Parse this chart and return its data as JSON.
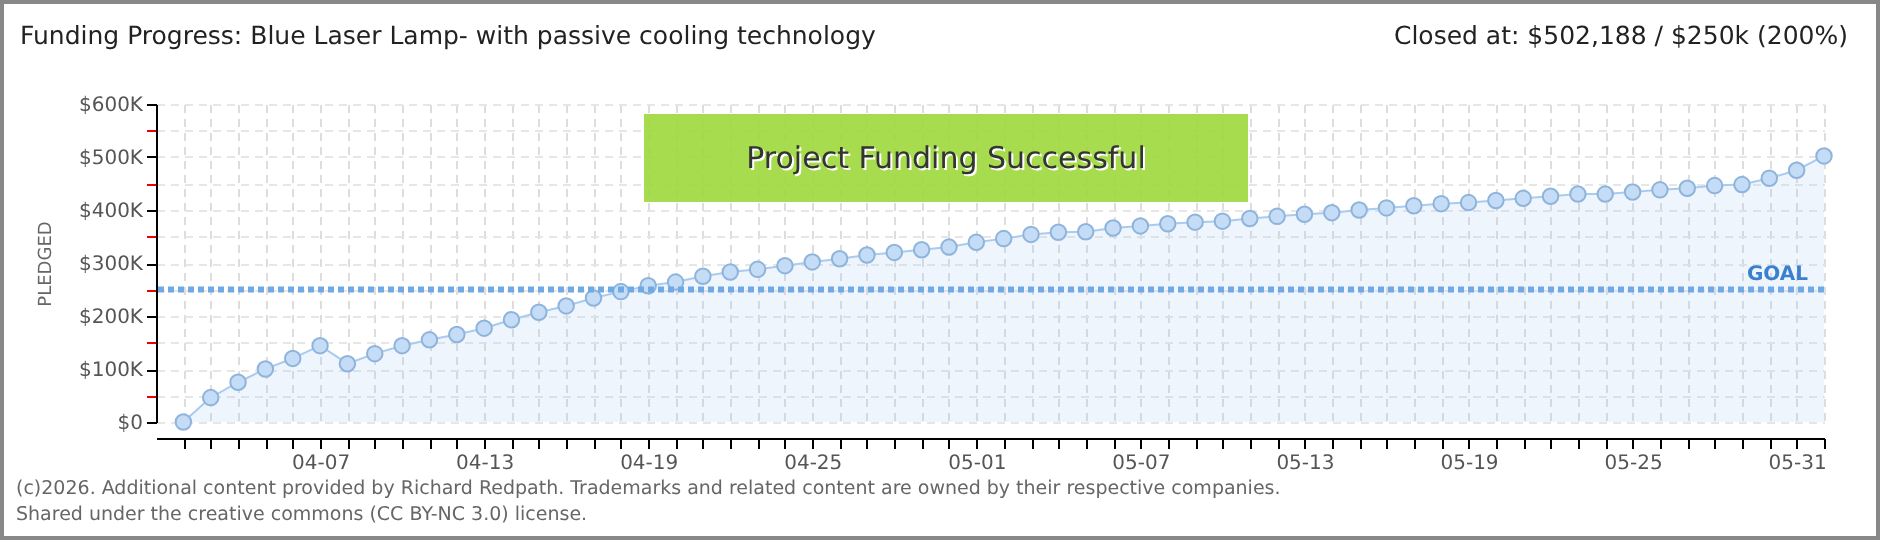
{
  "chart_data": {
    "type": "area",
    "title": "Funding Progress: Blue Laser Lamp- with passive cooling technology",
    "subtitle": "Closed at: $502,188 / $250k (200%)",
    "ylabel": "PLEDGED",
    "x": [
      "--04-02",
      "--04-03",
      "--04-04",
      "--04-05",
      "--04-06",
      "--04-07",
      "--04-08",
      "--04-09",
      "--04-10",
      "--04-11",
      "--04-12",
      "--04-13",
      "--04-14",
      "--04-15",
      "--04-16",
      "--04-17",
      "--04-18",
      "--04-19",
      "--04-20",
      "--04-21",
      "--04-22",
      "--04-23",
      "--04-24",
      "--04-25",
      "--04-26",
      "--04-27",
      "--04-28",
      "--04-29",
      "--04-30",
      "--05-01",
      "--05-02",
      "--05-03",
      "--05-04",
      "--05-05",
      "--05-06",
      "--05-07",
      "--05-08",
      "--05-09",
      "--05-10",
      "--05-11",
      "--05-12",
      "--05-13",
      "--05-14",
      "--05-15",
      "--05-16",
      "--05-17",
      "--05-18",
      "--05-19",
      "--05-20",
      "--05-21",
      "--05-22",
      "--05-23",
      "--05-24",
      "--05-25",
      "--05-26",
      "--05-27",
      "--05-28",
      "--05-29",
      "--05-30",
      "--05-31",
      "--06-01"
    ],
    "series": [
      {
        "color": "#a9cbf0",
        "values": [
          0,
          46000,
          75000,
          100000,
          120000,
          144000,
          110000,
          129000,
          144000,
          155000,
          165000,
          177000,
          193000,
          207000,
          219000,
          234000,
          246000,
          257000,
          264000,
          275000,
          283000,
          288000,
          295000,
          302000,
          308000,
          315000,
          320000,
          325000,
          330000,
          339000,
          346000,
          354000,
          358000,
          359000,
          366000,
          370000,
          374000,
          377000,
          379000,
          384000,
          388000,
          392000,
          395000,
          400000,
          404000,
          408000,
          412000,
          414000,
          418000,
          422000,
          426000,
          430000,
          430000,
          434000,
          438000,
          441000,
          446000,
          448000,
          460000,
          475000,
          502000
        ]
      }
    ],
    "xlim": [
      "--04-01",
      "--06-01"
    ],
    "xticks": [
      {
        "value": "--04-02",
        "label": null
      },
      {
        "value": "--04-03",
        "label": null
      },
      {
        "value": "--04-04",
        "label": null
      },
      {
        "value": "--04-05",
        "label": null
      },
      {
        "value": "--04-06",
        "label": null
      },
      {
        "value": "--04-07",
        "label": "04-07"
      },
      {
        "value": "--04-08",
        "label": null
      },
      {
        "value": "--04-09",
        "label": null
      },
      {
        "value": "--04-10",
        "label": null
      },
      {
        "value": "--04-11",
        "label": null
      },
      {
        "value": "--04-12",
        "label": null
      },
      {
        "value": "--04-13",
        "label": "04-13"
      },
      {
        "value": "--04-14",
        "label": null
      },
      {
        "value": "--04-15",
        "label": null
      },
      {
        "value": "--04-16",
        "label": null
      },
      {
        "value": "--04-17",
        "label": null
      },
      {
        "value": "--04-18",
        "label": null
      },
      {
        "value": "--04-19",
        "label": "04-19"
      },
      {
        "value": "--04-20",
        "label": null
      },
      {
        "value": "--04-21",
        "label": null
      },
      {
        "value": "--04-22",
        "label": null
      },
      {
        "value": "--04-23",
        "label": null
      },
      {
        "value": "--04-24",
        "label": null
      },
      {
        "value": "--04-25",
        "label": "04-25"
      },
      {
        "value": "--04-26",
        "label": null
      },
      {
        "value": "--04-27",
        "label": null
      },
      {
        "value": "--04-28",
        "label": null
      },
      {
        "value": "--04-29",
        "label": null
      },
      {
        "value": "--04-30",
        "label": null
      },
      {
        "value": "--05-01",
        "label": "05-01"
      },
      {
        "value": "--05-02",
        "label": null
      },
      {
        "value": "--05-03",
        "label": null
      },
      {
        "value": "--05-04",
        "label": null
      },
      {
        "value": "--05-05",
        "label": null
      },
      {
        "value": "--05-06",
        "label": null
      },
      {
        "value": "--05-07",
        "label": "05-07"
      },
      {
        "value": "--05-08",
        "label": null
      },
      {
        "value": "--05-09",
        "label": null
      },
      {
        "value": "--05-10",
        "label": null
      },
      {
        "value": "--05-11",
        "label": null
      },
      {
        "value": "--05-12",
        "label": null
      },
      {
        "value": "--05-13",
        "label": "05-13"
      },
      {
        "value": "--05-14",
        "label": null
      },
      {
        "value": "--05-15",
        "label": null
      },
      {
        "value": "--05-16",
        "label": null
      },
      {
        "value": "--05-17",
        "label": null
      },
      {
        "value": "--05-18",
        "label": null
      },
      {
        "value": "--05-19",
        "label": "05-19"
      },
      {
        "value": "--05-20",
        "label": null
      },
      {
        "value": "--05-21",
        "label": null
      },
      {
        "value": "--05-22",
        "label": null
      },
      {
        "value": "--05-23",
        "label": null
      },
      {
        "value": "--05-24",
        "label": null
      },
      {
        "value": "--05-25",
        "label": "05-25"
      },
      {
        "value": "--05-26",
        "label": null
      },
      {
        "value": "--05-27",
        "label": null
      },
      {
        "value": "--05-28",
        "label": null
      },
      {
        "value": "--05-29",
        "label": null
      },
      {
        "value": "--05-30",
        "label": null
      },
      {
        "value": "--05-31",
        "label": "05-31"
      },
      {
        "value": "--06-01",
        "label": null
      }
    ],
    "ylim": [
      0,
      600000
    ],
    "yticks": [
      {
        "value": 0,
        "label": "$0"
      },
      {
        "value": 50000,
        "label": null
      },
      {
        "value": 100000,
        "label": "$100K"
      },
      {
        "value": 150000,
        "label": null
      },
      {
        "value": 200000,
        "label": "$200K"
      },
      {
        "value": 250000,
        "label": null
      },
      {
        "value": 300000,
        "label": "$300K"
      },
      {
        "value": 350000,
        "label": null
      },
      {
        "value": 400000,
        "label": "$400K"
      },
      {
        "value": 450000,
        "label": null
      },
      {
        "value": 500000,
        "label": "$500K"
      },
      {
        "value": 550000,
        "label": null
      },
      {
        "value": 600000,
        "label": "$600K"
      }
    ],
    "ref_lines": [
      {
        "axis": "y",
        "value": 250000,
        "label": "GOAL",
        "color": "#6fa9e6",
        "line_style": "dashed"
      }
    ],
    "grid": true,
    "marker": "circle",
    "annotations": [
      "Project Funding Successful",
      "(c)2026. Additional content provided by Richard Redpath. Trademarks and related content are owned by their respective companies.",
      "Shared under the creative commons (CC BY-NC 3.0) license."
    ]
  }
}
